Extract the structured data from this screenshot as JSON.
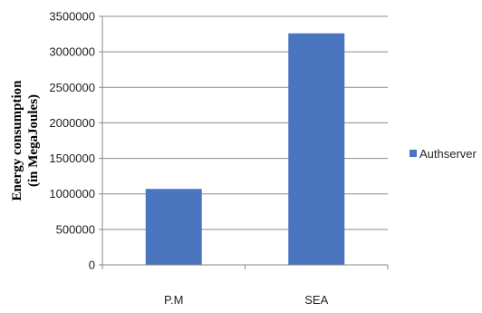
{
  "chart_data": {
    "type": "bar",
    "title": "",
    "xlabel": "",
    "ylabel_lines": [
      "Energy consumption",
      "(in MegaJoules)"
    ],
    "categories": [
      "P.M",
      "SEA"
    ],
    "series": [
      {
        "name": "Authserver",
        "values": [
          1070000,
          3260000
        ],
        "color": "#4a76bf"
      }
    ],
    "ylim": [
      0,
      3500000
    ],
    "yticks": [
      "0",
      "500000",
      "1000000",
      "1500000",
      "2000000",
      "2500000",
      "3000000",
      "3500000"
    ],
    "grid": true,
    "legend_position": "right"
  }
}
